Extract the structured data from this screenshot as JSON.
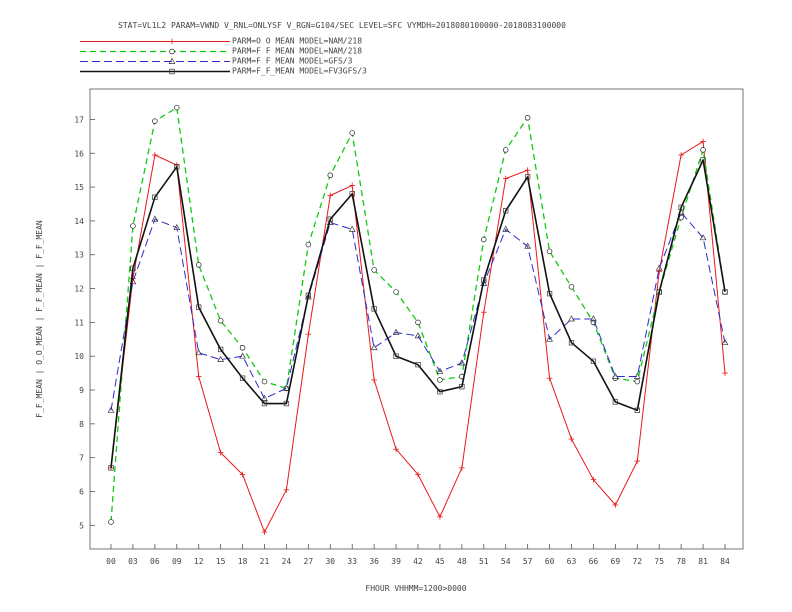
{
  "chart_data": {
    "type": "line",
    "title": "STAT=VL1L2 PARAM=VWND V_RNL=ONLYSF V_RGN=G104/SEC LEVEL=SFC VYMDH=2018080100000-2018083100000",
    "xlabel": "FHOUR VHHMM=1200>0000",
    "ylabel": "F_F_MEAN | O_O_MEAN | F_F_MEAN | F_F_MEAN",
    "categories": [
      "00",
      "03",
      "06",
      "09",
      "12",
      "15",
      "18",
      "21",
      "24",
      "27",
      "30",
      "33",
      "36",
      "39",
      "42",
      "45",
      "48",
      "51",
      "54",
      "57",
      "60",
      "63",
      "66",
      "69",
      "72",
      "75",
      "78",
      "81",
      "84"
    ],
    "ylim": [
      4.3,
      17.9
    ],
    "yticks": [
      5,
      6,
      7,
      8,
      9,
      10,
      11,
      12,
      13,
      14,
      15,
      16,
      17
    ],
    "legend_position": "top-left",
    "grid": false,
    "series": [
      {
        "name": "PARM=O_O_MEAN MODEL=NAM/218",
        "color": "#e8191a",
        "dash": "",
        "width": 1,
        "marker": "plus",
        "values": [
          6.7,
          12.3,
          15.95,
          15.65,
          9.4,
          7.15,
          6.5,
          4.8,
          6.05,
          10.65,
          14.75,
          15.05,
          9.3,
          7.25,
          6.5,
          5.25,
          6.7,
          11.3,
          15.25,
          15.5,
          9.35,
          7.55,
          6.35,
          5.6,
          6.9,
          12.5,
          15.95,
          16.35,
          9.5
        ]
      },
      {
        "name": "PARM=F_F_MEAN MODEL=NAM/218",
        "color": "#11c911",
        "dash": "6,4",
        "width": 1.3,
        "marker": "circle",
        "values": [
          5.1,
          13.85,
          16.95,
          17.35,
          12.7,
          11.05,
          10.25,
          9.25,
          9.05,
          13.3,
          15.35,
          16.6,
          12.55,
          11.9,
          11.0,
          9.3,
          9.4,
          13.45,
          16.1,
          17.05,
          13.1,
          12.05,
          11.0,
          9.35,
          9.25,
          11.9,
          14.1,
          16.1,
          11.9
        ]
      },
      {
        "name": "PARM=F_F_MEAN MODEL=GFS/3",
        "color": "#2b2bd1",
        "dash": "8,4",
        "width": 1,
        "marker": "triangle",
        "values": [
          8.4,
          12.2,
          14.05,
          13.8,
          10.1,
          9.9,
          10.0,
          8.75,
          9.05,
          11.75,
          13.95,
          13.75,
          10.25,
          10.7,
          10.6,
          9.55,
          9.8,
          12.15,
          13.75,
          13.25,
          10.5,
          11.1,
          11.1,
          9.4,
          9.4,
          12.6,
          14.25,
          13.5,
          10.4
        ]
      },
      {
        "name": "PARM=F_F_MEAN MODEL=FV3GFS/3",
        "color": "#111111",
        "dash": "",
        "width": 1.6,
        "marker": "square",
        "values": [
          6.7,
          12.6,
          14.7,
          15.6,
          11.45,
          10.2,
          9.35,
          8.6,
          8.6,
          11.8,
          14.05,
          14.8,
          11.4,
          10.0,
          9.75,
          8.95,
          9.1,
          12.25,
          14.3,
          15.3,
          11.85,
          10.4,
          9.85,
          8.65,
          8.4,
          11.9,
          14.4,
          15.8,
          11.9
        ]
      }
    ]
  }
}
